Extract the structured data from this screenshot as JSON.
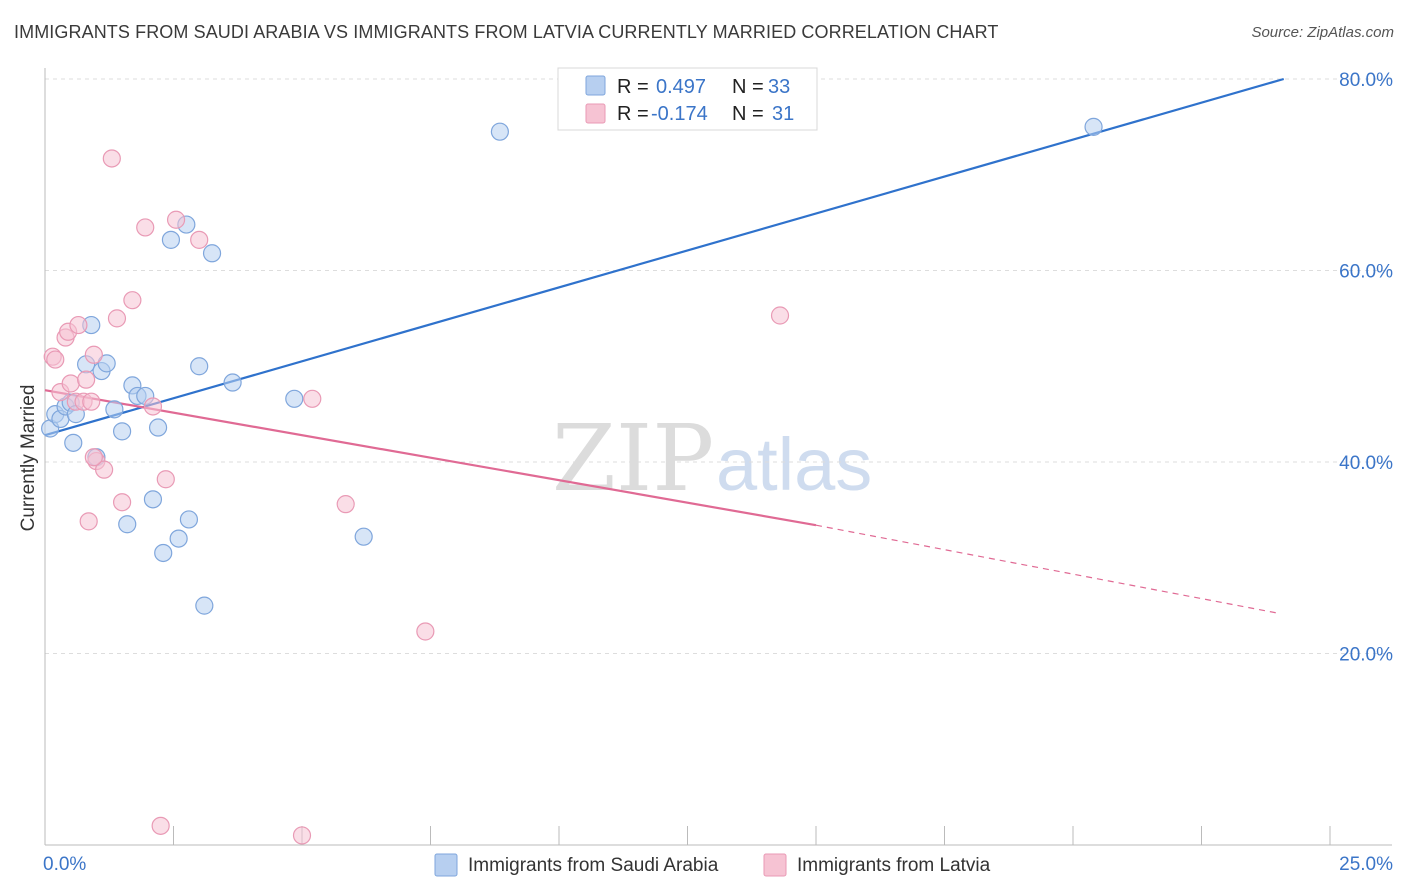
{
  "title": "IMMIGRANTS FROM SAUDI ARABIA VS IMMIGRANTS FROM LATVIA CURRENTLY MARRIED CORRELATION CHART",
  "source": "Source: ZipAtlas.com",
  "watermark": {
    "zip": "ZIP",
    "atlas": "atlas"
  },
  "legend_box": {
    "rows": [
      {
        "r_label": "R =",
        "r_value": "0.497",
        "n_label": "N =",
        "n_value": "33"
      },
      {
        "r_label": "R =",
        "r_value": "-0.174",
        "n_label": "N =",
        "n_value": "31"
      }
    ]
  },
  "colors": {
    "blue_fill": "#b7cff0",
    "blue_stroke": "#7fa6dc",
    "blue_line": "#2f72cc",
    "pink_fill": "#f6c3d3",
    "pink_stroke": "#e99ab5",
    "pink_line": "#e06a94",
    "grid": "#dddddd",
    "tick_label": "#3b75c8"
  },
  "chart_data": {
    "type": "scatter",
    "title": "IMMIGRANTS FROM SAUDI ARABIA VS IMMIGRANTS FROM LATVIA CURRENTLY MARRIED CORRELATION CHART",
    "xlabel": "",
    "ylabel": "Currently Married",
    "xlim": [
      0,
      25
    ],
    "ylim": [
      0,
      80
    ],
    "x_tick_labels": [
      "0.0%",
      "25.0%"
    ],
    "y_ticks": [
      20,
      40,
      60,
      80
    ],
    "y_tick_labels": [
      "20.0%",
      "40.0%",
      "60.0%",
      "80.0%"
    ],
    "series": [
      {
        "name": "Immigrants from Saudi Arabia",
        "color": "blue",
        "r": 0.497,
        "n": 33,
        "points": [
          [
            0.1,
            43.5
          ],
          [
            0.2,
            45
          ],
          [
            0.3,
            44.5
          ],
          [
            0.4,
            45.8
          ],
          [
            0.5,
            46.2
          ],
          [
            0.55,
            42
          ],
          [
            0.6,
            45
          ],
          [
            0.8,
            50.2
          ],
          [
            0.9,
            54.3
          ],
          [
            1.0,
            40.5
          ],
          [
            1.1,
            49.5
          ],
          [
            1.2,
            50.3
          ],
          [
            1.35,
            45.5
          ],
          [
            1.5,
            43.2
          ],
          [
            1.6,
            33.5
          ],
          [
            1.7,
            48
          ],
          [
            1.8,
            46.9
          ],
          [
            1.95,
            46.9
          ],
          [
            2.1,
            36.1
          ],
          [
            2.2,
            43.6
          ],
          [
            2.3,
            30.5
          ],
          [
            2.45,
            63.2
          ],
          [
            2.6,
            32
          ],
          [
            2.75,
            64.8
          ],
          [
            2.8,
            34
          ],
          [
            3.0,
            50
          ],
          [
            3.1,
            25
          ],
          [
            3.25,
            61.8
          ],
          [
            3.65,
            48.3
          ],
          [
            4.85,
            46.6
          ],
          [
            6.2,
            32.2
          ],
          [
            8.85,
            74.5
          ],
          [
            20.4,
            75
          ]
        ],
        "trend": {
          "x0": 0,
          "y0": 42.8,
          "x1": 24.1,
          "y1": 80,
          "dashed_to": null
        }
      },
      {
        "name": "Immigrants from Latvia",
        "color": "pink",
        "r": -0.174,
        "n": 31,
        "points": [
          [
            0.15,
            51
          ],
          [
            0.2,
            50.7
          ],
          [
            0.3,
            47.3
          ],
          [
            0.4,
            53
          ],
          [
            0.45,
            53.6
          ],
          [
            0.5,
            48.2
          ],
          [
            0.6,
            46.3
          ],
          [
            0.65,
            54.3
          ],
          [
            0.75,
            46.3
          ],
          [
            0.8,
            48.6
          ],
          [
            0.85,
            33.8
          ],
          [
            0.9,
            46.3
          ],
          [
            0.95,
            51.2
          ],
          [
            1.0,
            40.1
          ],
          [
            1.15,
            39.2
          ],
          [
            1.3,
            71.7
          ],
          [
            1.4,
            55
          ],
          [
            1.5,
            35.8
          ],
          [
            1.7,
            56.9
          ],
          [
            1.95,
            64.5
          ],
          [
            2.1,
            45.8
          ],
          [
            2.25,
            2
          ],
          [
            2.35,
            38.2
          ],
          [
            2.55,
            65.3
          ],
          [
            3.0,
            63.2
          ],
          [
            5.0,
            1
          ],
          [
            5.2,
            46.6
          ],
          [
            5.85,
            35.6
          ],
          [
            7.4,
            22.3
          ],
          [
            14.3,
            55.3
          ],
          [
            0.95,
            40.5
          ]
        ],
        "trend": {
          "x0": 0,
          "y0": 47.5,
          "x1": 15.0,
          "y1": 33.4,
          "dashed_to": {
            "x": 24.0,
            "y": 24.2
          }
        }
      }
    ]
  },
  "bottom_legend": [
    {
      "label": "Immigrants from Saudi Arabia",
      "color": "blue"
    },
    {
      "label": "Immigrants from Latvia",
      "color": "pink"
    }
  ]
}
